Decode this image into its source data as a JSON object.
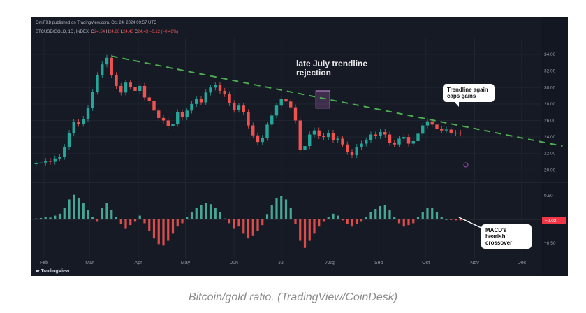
{
  "header": {
    "published": "OmiFX8 published on TradingView.com, Oct 24, 2024 09:57 UTC",
    "symbol": "BTCUSD/GOLD, 1D, INDEX",
    "o_label": "O",
    "o": "24.54",
    "h_label": "H",
    "h": "24.66",
    "l_label": "L",
    "l": "24.43",
    "c_label": "C",
    "c": "24.43",
    "change": "−0.12 (−0.48%)"
  },
  "annotations": {
    "late_july": "late July trendline rejection",
    "trendline_caps": "Trendline again caps gains",
    "macd": "MACD's bearish crossover"
  },
  "logo": "TradingView",
  "caption": "Bitcoin/gold ratio. (TradingView/CoinDesk)",
  "colors": {
    "up": "#26a69a",
    "down": "#ef5350",
    "trendline": "#4caf50",
    "background": "#161a25"
  },
  "chart_data": {
    "type": "candlestick+histogram",
    "title": "BTCUSD/GOLD, 1D, INDEX",
    "x_unit": "days since Feb 1, 2024",
    "x_start": -5,
    "x_step": 3,
    "closes": [
      20.8,
      20.9,
      21.1,
      21.0,
      21.4,
      21.6,
      22.8,
      24.5,
      25.8,
      25.6,
      26.2,
      27.5,
      29.5,
      31.5,
      32.8,
      33.6,
      31.5,
      30.2,
      29.4,
      30.6,
      30.1,
      29.6,
      30.2,
      28.8,
      28.4,
      27.2,
      26.3,
      26.0,
      25.3,
      25.6,
      27.0,
      26.4,
      27.2,
      28.0,
      28.6,
      28.2,
      29.4,
      30.0,
      30.3,
      29.6,
      29.2,
      28.1,
      27.3,
      27.8,
      27.0,
      25.4,
      24.2,
      23.4,
      23.9,
      25.5,
      26.6,
      27.8,
      28.6,
      28.3,
      27.6,
      26.0,
      22.4,
      22.9,
      24.3,
      24.8,
      24.1,
      24.0,
      24.5,
      23.6,
      23.8,
      23.1,
      22.2,
      21.8,
      22.8,
      23.2,
      23.6,
      24.3,
      24.1,
      24.6,
      24.3,
      23.3,
      23.1,
      23.8,
      24.0,
      23.2,
      23.5,
      24.4,
      25.4,
      25.9,
      25.5,
      25.0,
      24.8,
      24.9,
      24.5,
      24.5,
      24.43
    ],
    "macd_hist": [
      0.02,
      0.03,
      0.05,
      0.04,
      0.08,
      0.12,
      0.25,
      0.42,
      0.52,
      0.45,
      0.35,
      0.2,
      0.05,
      -0.05,
      0.25,
      0.35,
      0.2,
      0.05,
      -0.1,
      -0.2,
      -0.12,
      -0.05,
      0.08,
      -0.08,
      -0.25,
      -0.4,
      -0.52,
      -0.55,
      -0.45,
      -0.3,
      -0.15,
      -0.08,
      0.05,
      0.15,
      0.25,
      0.3,
      0.35,
      0.32,
      0.25,
      0.15,
      0.02,
      -0.08,
      -0.2,
      -0.15,
      -0.3,
      -0.4,
      -0.35,
      -0.25,
      -0.12,
      0.1,
      0.3,
      0.45,
      0.5,
      0.42,
      0.25,
      -0.1,
      -0.45,
      -0.6,
      -0.45,
      -0.3,
      -0.15,
      -0.05,
      0.05,
      0.12,
      0.08,
      -0.02,
      -0.1,
      -0.15,
      -0.1,
      -0.05,
      0.05,
      0.15,
      0.22,
      0.28,
      0.3,
      0.2,
      0.05,
      -0.08,
      -0.15,
      -0.12,
      -0.08,
      0.05,
      0.15,
      0.25,
      0.25,
      0.15,
      0.05,
      0.0,
      -0.01,
      -0.02,
      -0.02
    ],
    "trendline": [
      {
        "x": 43,
        "value": 33.8
      },
      {
        "x": 330,
        "value": 22.9
      }
    ],
    "price_axis": {
      "ticks": [
        "34.00",
        "32.00",
        "30.00",
        "28.00",
        "26.00",
        "24.00",
        "22.00",
        "20.00"
      ],
      "range": [
        18.5,
        36.8
      ]
    },
    "macd_axis": {
      "ticks": [
        "0.50",
        "−0.50"
      ],
      "current": "−0.02",
      "range": [
        -0.78,
        0.78
      ]
    },
    "x_ticks": [
      {
        "label": "Feb",
        "x": 0
      },
      {
        "label": "Mar",
        "x": 29
      },
      {
        "label": "Apr",
        "x": 60
      },
      {
        "label": "May",
        "x": 90
      },
      {
        "label": "Jun",
        "x": 121
      },
      {
        "label": "Jul",
        "x": 151
      },
      {
        "label": "Aug",
        "x": 182
      },
      {
        "label": "Sep",
        "x": 213
      },
      {
        "label": "Oct",
        "x": 243
      },
      {
        "label": "Nov",
        "x": 274
      },
      {
        "label": "Dec",
        "x": 304
      }
    ]
  }
}
